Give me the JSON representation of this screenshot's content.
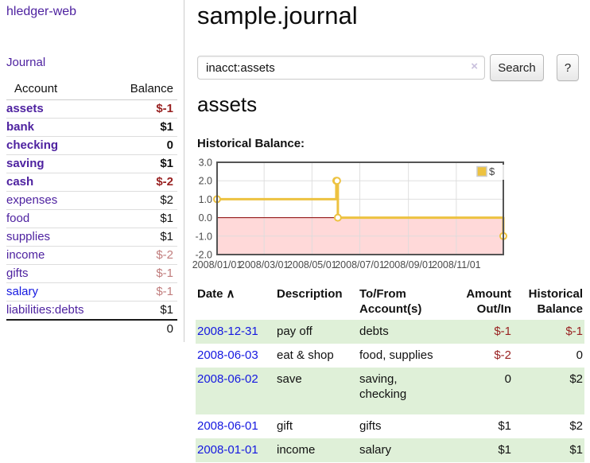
{
  "colors": {
    "link_purple": "#4e22a0",
    "link_blue": "#1518e0",
    "negative_strong": "#992222",
    "negative_soft": "#c17d7d",
    "row_shade_green": "#dff0d8"
  },
  "sidebar": {
    "brand": "hledger-web",
    "nav_journal": "Journal",
    "accounts_table": {
      "header_account": "Account",
      "header_balance": "Balance",
      "rows": [
        {
          "account": "assets",
          "balance": "$-1",
          "level": 1,
          "bold": true,
          "balance_tone": "neg-strong"
        },
        {
          "account": "bank",
          "balance": "$1",
          "level": 2,
          "bold": true,
          "balance_tone": ""
        },
        {
          "account": "checking",
          "balance": "0",
          "level": 3,
          "bold": true,
          "balance_tone": ""
        },
        {
          "account": "saving",
          "balance": "$1",
          "level": 3,
          "bold": true,
          "balance_tone": ""
        },
        {
          "account": "cash",
          "balance": "$-2",
          "level": 2,
          "bold": true,
          "balance_tone": "neg-strong"
        },
        {
          "account": "expenses",
          "balance": "$2",
          "level": 1,
          "bold": false,
          "balance_tone": ""
        },
        {
          "account": "food",
          "balance": "$1",
          "level": 2,
          "bold": false,
          "balance_tone": ""
        },
        {
          "account": "supplies",
          "balance": "$1",
          "level": 2,
          "bold": false,
          "balance_tone": ""
        },
        {
          "account": "income",
          "balance": "$-2",
          "level": 1,
          "bold": false,
          "balance_tone": "neg-soft"
        },
        {
          "account": "gifts",
          "balance": "$-1",
          "level": 2,
          "bold": false,
          "balance_tone": "neg-soft"
        },
        {
          "account": "salary",
          "balance": "$-1",
          "level": 2,
          "bold": false,
          "balance_tone": "neg-soft",
          "link_tone": "blue"
        },
        {
          "account": "liabilities:debts",
          "balance": "$1",
          "level": 1,
          "bold": false,
          "balance_tone": ""
        }
      ],
      "total": "0"
    }
  },
  "main": {
    "title": "sample.journal",
    "search": {
      "value": "inacct:assets",
      "clear_icon": "×",
      "button_label": "Search",
      "help_label": "?"
    },
    "account_heading": "assets",
    "chart_label": "Historical Balance:"
  },
  "chart_data": {
    "type": "line",
    "title": "Historical Balance",
    "step": true,
    "series": [
      {
        "name": "$",
        "color": "#edc240",
        "points": [
          {
            "date": "2008-01-01",
            "value": 1
          },
          {
            "date": "2008-06-01",
            "value": 2
          },
          {
            "date": "2008-06-02",
            "value": 2
          },
          {
            "date": "2008-06-03",
            "value": 0
          },
          {
            "date": "2008-12-31",
            "value": -1
          }
        ]
      }
    ],
    "x_ticks": [
      "2008/01/01",
      "2008/03/01",
      "2008/05/01",
      "2008/07/01",
      "2008/09/01",
      "2008/11/01"
    ],
    "y_ticks": [
      3.0,
      2.0,
      1.0,
      0.0,
      -1.0,
      -2.0
    ],
    "y_tick_labels": [
      "3.0",
      "2.0",
      "1.0",
      "0.0",
      "-1.0",
      "-2.0"
    ],
    "xlim_days": 365,
    "ylim": [
      -2,
      3
    ],
    "legend_position": "top-right",
    "grid": true,
    "style": {
      "negative_fill": "#ffd9d9",
      "zero_line": "#8b0000",
      "grid_line": "#dcdcdc",
      "border": "#545454",
      "tick_text": "#4a4a4a",
      "marker_fill": "#ffffff"
    }
  },
  "register": {
    "headers": {
      "date": "Date",
      "sort_indicator": "∧",
      "description": "Description",
      "account": "To/From Account(s)",
      "amount": "Amount Out/In",
      "balance": "Historical Balance"
    },
    "rows": [
      {
        "date": "2008-12-31",
        "description": "pay off",
        "account": "debts",
        "amount": "$-1",
        "amount_neg": true,
        "balance": "$-1",
        "balance_neg": true,
        "shaded": true,
        "tall": false
      },
      {
        "date": "2008-06-03",
        "description": "eat & shop",
        "account": "food, supplies",
        "amount": "$-2",
        "amount_neg": true,
        "balance": "0",
        "balance_neg": false,
        "shaded": false,
        "tall": false
      },
      {
        "date": "2008-06-02",
        "description": "save",
        "account": "saving, checking",
        "amount": "0",
        "amount_neg": false,
        "balance": "$2",
        "balance_neg": false,
        "shaded": true,
        "tall": true
      },
      {
        "date": "2008-06-01",
        "description": "gift",
        "account": "gifts",
        "amount": "$1",
        "amount_neg": false,
        "balance": "$2",
        "balance_neg": false,
        "shaded": false,
        "tall": false
      },
      {
        "date": "2008-01-01",
        "description": "income",
        "account": "salary",
        "amount": "$1",
        "amount_neg": false,
        "balance": "$1",
        "balance_neg": false,
        "shaded": true,
        "tall": false
      }
    ]
  }
}
